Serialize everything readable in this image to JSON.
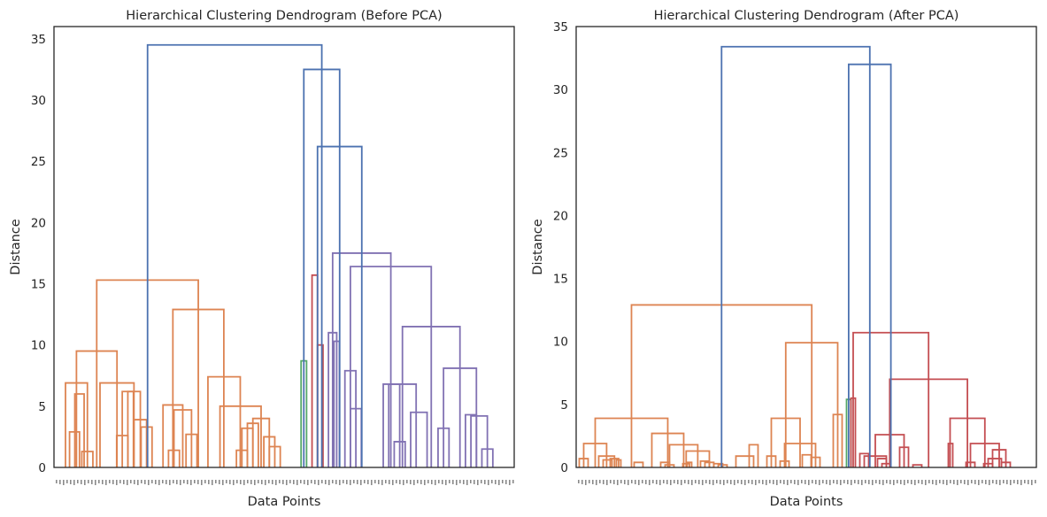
{
  "chart_data": [
    {
      "type": "dendrogram",
      "title": "Hierarchical Clustering Dendrogram (Before PCA)",
      "xlabel": "Data Points",
      "ylabel": "Distance",
      "ylim": [
        0,
        36
      ],
      "yticks": [
        0,
        5,
        10,
        15,
        20,
        25,
        30,
        35
      ],
      "grid": false,
      "legend": "none",
      "link_color": "#4c72b0",
      "links": [
        {
          "x": [
            14.2,
            23.3
          ],
          "h": 2.9,
          "c": "#dd8452"
        },
        {
          "x": [
            19,
            27.5
          ],
          "h": 6.0,
          "c": "#dd8452"
        },
        {
          "x": [
            25.4,
            35.5
          ],
          "h": 1.3,
          "c": "#dd8452"
        },
        {
          "x": [
            10.5,
            30.5
          ],
          "h": 6.9,
          "c": "#dd8452"
        },
        {
          "x": [
            57.2,
            67.5
          ],
          "h": 2.6,
          "c": "#dd8452"
        },
        {
          "x": [
            62.3,
            72.5
          ],
          "h": 6.2,
          "c": "#dd8452"
        },
        {
          "x": [
            79.5,
            89.5
          ],
          "h": 3.3,
          "c": "#dd8452"
        },
        {
          "x": [
            73,
            84.5
          ],
          "h": 3.9,
          "c": "#dd8452"
        },
        {
          "x": [
            67.4,
            78.8
          ],
          "h": 6.2,
          "c": "#dd8452"
        },
        {
          "x": [
            42,
            73
          ],
          "h": 6.9,
          "c": "#dd8452"
        },
        {
          "x": [
            20.5,
            57.5
          ],
          "h": 9.5,
          "c": "#dd8452"
        },
        {
          "x": [
            104.5,
            114.5
          ],
          "h": 1.4,
          "c": "#dd8452"
        },
        {
          "x": [
            120.5,
            130.5
          ],
          "h": 2.7,
          "c": "#dd8452"
        },
        {
          "x": [
            109.5,
            125.5
          ],
          "h": 4.7,
          "c": "#dd8452"
        },
        {
          "x": [
            99.5,
            117.5
          ],
          "h": 5.1,
          "c": "#dd8452"
        },
        {
          "x": [
            166.5,
            176.5
          ],
          "h": 1.4,
          "c": "#dd8452"
        },
        {
          "x": [
            171.5,
            181.5
          ],
          "h": 3.2,
          "c": "#dd8452"
        },
        {
          "x": [
            176.5,
            186.5
          ],
          "h": 3.6,
          "c": "#dd8452"
        },
        {
          "x": [
            196.5,
            206.5
          ],
          "h": 1.7,
          "c": "#dd8452"
        },
        {
          "x": [
            191.5,
            201.5
          ],
          "h": 2.5,
          "c": "#dd8452"
        },
        {
          "x": [
            181.5,
            196.5
          ],
          "h": 4.0,
          "c": "#dd8452"
        },
        {
          "x": [
            151.5,
            189.0
          ],
          "h": 5.0,
          "c": "#dd8452"
        },
        {
          "x": [
            140.5,
            170.0
          ],
          "h": 7.4,
          "c": "#dd8452"
        },
        {
          "x": [
            108.5,
            155.0
          ],
          "h": 12.9,
          "c": "#dd8452"
        },
        {
          "x": [
            39.0,
            131.7
          ],
          "h": 15.3,
          "c": "#dd8452"
        },
        {
          "x": [
            225.5,
            230.5
          ],
          "h": 8.7,
          "c": "#55a868"
        },
        {
          "x": [
            235.5,
            240.5
          ],
          "h": 15.7,
          "c": "#c44e52"
        },
        {
          "x": [
            240.5,
            245.5
          ],
          "h": 10.0,
          "c": "#c44e52"
        },
        {
          "x": [
            255.5,
            260.5
          ],
          "h": 10.3,
          "c": "#8172b3"
        },
        {
          "x": [
            250.5,
            258.0
          ],
          "h": 11.0,
          "c": "#8172b3"
        },
        {
          "x": [
            270.5,
            280.5
          ],
          "h": 4.8,
          "c": "#8172b3"
        },
        {
          "x": [
            265.5,
            275.5
          ],
          "h": 7.9,
          "c": "#8172b3"
        },
        {
          "x": [
            310.5,
            320.5
          ],
          "h": 2.1,
          "c": "#8172b3"
        },
        {
          "x": [
            300.5,
            315.5
          ],
          "h": 6.8,
          "c": "#8172b3"
        },
        {
          "x": [
            325.5,
            340.5
          ],
          "h": 4.5,
          "c": "#8172b3"
        },
        {
          "x": [
            305.5,
            330.5
          ],
          "h": 6.8,
          "c": "#8172b3"
        },
        {
          "x": [
            350.5,
            360.5
          ],
          "h": 3.2,
          "c": "#8172b3"
        },
        {
          "x": [
            375.5,
            385.5
          ],
          "h": 4.3,
          "c": "#8172b3"
        },
        {
          "x": [
            390.5,
            400.5
          ],
          "h": 1.5,
          "c": "#8172b3"
        },
        {
          "x": [
            380.5,
            395.5
          ],
          "h": 4.2,
          "c": "#8172b3"
        },
        {
          "x": [
            355.5,
            385.5
          ],
          "h": 8.1,
          "c": "#8172b3"
        },
        {
          "x": [
            318.0,
            370.5
          ],
          "h": 11.5,
          "c": "#8172b3"
        },
        {
          "x": [
            270.5,
            344.3
          ],
          "h": 16.4,
          "c": "#8172b3"
        },
        {
          "x": [
            254.3,
            307.4
          ],
          "h": 17.5,
          "c": "#8172b3"
        },
        {
          "x": [
            240.5,
            280.9
          ],
          "h": 26.2,
          "c": "#4c72b0"
        },
        {
          "x": [
            228.0,
            260.7
          ],
          "h": 32.5,
          "c": "#4c72b0"
        },
        {
          "x": [
            85.4,
            244.4
          ],
          "h": 34.5,
          "c": "#4c72b0"
        }
      ]
    },
    {
      "type": "dendrogram",
      "title": "Hierarchical Clustering Dendrogram (After PCA)",
      "xlabel": "Data Points",
      "ylabel": "Distance",
      "ylim": [
        0,
        35
      ],
      "yticks": [
        0,
        5,
        10,
        15,
        20,
        25,
        30,
        35
      ],
      "grid": false,
      "legend": "none",
      "link_color": "#4c72b0",
      "links": [
        {
          "x": [
            3.5,
            13.5
          ],
          "h": 0.7,
          "c": "#dd8452"
        },
        {
          "x": [
            30.5,
            40.5
          ],
          "h": 0.6,
          "c": "#dd8452"
        },
        {
          "x": [
            45.5,
            50.5
          ],
          "h": 0.6,
          "c": "#dd8452"
        },
        {
          "x": [
            38.5,
            48.0
          ],
          "h": 0.7,
          "c": "#dd8452"
        },
        {
          "x": [
            25.5,
            43.3
          ],
          "h": 0.9,
          "c": "#dd8452"
        },
        {
          "x": [
            8.5,
            34.4
          ],
          "h": 1.9,
          "c": "#dd8452"
        },
        {
          "x": [
            65.5,
            75.5
          ],
          "h": 0.4,
          "c": "#dd8452"
        },
        {
          "x": [
            95.5,
            105.5
          ],
          "h": 0.4,
          "c": "#dd8452"
        },
        {
          "x": [
            100.5,
            110.5
          ],
          "h": 0.2,
          "c": "#dd8452"
        },
        {
          "x": [
            125.5,
            130.5
          ],
          "h": 0.4,
          "c": "#dd8452"
        },
        {
          "x": [
            120.5,
            128.0
          ],
          "h": 0.3,
          "c": "#dd8452"
        },
        {
          "x": [
            140.5,
            150.5
          ],
          "h": 0.5,
          "c": "#dd8452"
        },
        {
          "x": [
            145.5,
            155.5
          ],
          "h": 0.4,
          "c": "#dd8452"
        },
        {
          "x": [
            155.5,
            165.5
          ],
          "h": 0.3,
          "c": "#dd8452"
        },
        {
          "x": [
            160.5,
            170.5
          ],
          "h": 0.2,
          "c": "#dd8452"
        },
        {
          "x": [
            124.3,
            150.5
          ],
          "h": 1.3,
          "c": "#dd8452"
        },
        {
          "x": [
            105.5,
            137.4
          ],
          "h": 1.8,
          "c": "#dd8452"
        },
        {
          "x": [
            85.5,
            121.5
          ],
          "h": 2.7,
          "c": "#dd8452"
        },
        {
          "x": [
            21.5,
            103.5
          ],
          "h": 3.9,
          "c": "#dd8452"
        },
        {
          "x": [
            195.5,
            205.5
          ],
          "h": 1.8,
          "c": "#dd8452"
        },
        {
          "x": [
            180.5,
            200.5
          ],
          "h": 0.9,
          "c": "#dd8452"
        },
        {
          "x": [
            215.5,
            225.5
          ],
          "h": 0.9,
          "c": "#dd8452"
        },
        {
          "x": [
            230.5,
            240.5
          ],
          "h": 0.5,
          "c": "#dd8452"
        },
        {
          "x": [
            255.5,
            265.5
          ],
          "h": 1.0,
          "c": "#dd8452"
        },
        {
          "x": [
            265.5,
            275.5
          ],
          "h": 0.8,
          "c": "#dd8452"
        },
        {
          "x": [
            235.5,
            270.5
          ],
          "h": 1.9,
          "c": "#dd8452"
        },
        {
          "x": [
            220.5,
            253.0
          ],
          "h": 3.9,
          "c": "#dd8452"
        },
        {
          "x": [
            290.5,
            300.5
          ],
          "h": 4.2,
          "c": "#dd8452"
        },
        {
          "x": [
            236.8,
            295.5
          ],
          "h": 9.9,
          "c": "#dd8452"
        },
        {
          "x": [
            62.5,
            266.2
          ],
          "h": 12.9,
          "c": "#dd8452"
        },
        {
          "x": [
            305.5,
            310.5
          ],
          "h": 5.4,
          "c": "#55a868"
        },
        {
          "x": [
            320.5,
            330.5
          ],
          "h": 1.1,
          "c": "#c44e52"
        },
        {
          "x": [
            340.5,
            350.5
          ],
          "h": 0.7,
          "c": "#c44e52"
        },
        {
          "x": [
            345.5,
            355.5
          ],
          "h": 0.3,
          "c": "#c44e52"
        },
        {
          "x": [
            325.5,
            350.5
          ],
          "h": 0.9,
          "c": "#c44e52"
        },
        {
          "x": [
            365.5,
            375.5
          ],
          "h": 1.6,
          "c": "#c44e52"
        },
        {
          "x": [
            380.5,
            390.5
          ],
          "h": 0.2,
          "c": "#c44e52"
        },
        {
          "x": [
            338.0,
            370.5
          ],
          "h": 2.6,
          "c": "#c44e52"
        },
        {
          "x": [
            420.5,
            425.5
          ],
          "h": 1.9,
          "c": "#c44e52"
        },
        {
          "x": [
            440.5,
            450.5
          ],
          "h": 0.4,
          "c": "#c44e52"
        },
        {
          "x": [
            460.5,
            470.5
          ],
          "h": 0.3,
          "c": "#c44e52"
        },
        {
          "x": [
            465.5,
            480.5
          ],
          "h": 0.7,
          "c": "#c44e52"
        },
        {
          "x": [
            480.5,
            490.5
          ],
          "h": 0.4,
          "c": "#c44e52"
        },
        {
          "x": [
            470.5,
            485.5
          ],
          "h": 1.4,
          "c": "#c44e52"
        },
        {
          "x": [
            445.5,
            478.0
          ],
          "h": 1.9,
          "c": "#c44e52"
        },
        {
          "x": [
            422.5,
            461.8
          ],
          "h": 3.9,
          "c": "#c44e52"
        },
        {
          "x": [
            354.3,
            442.1
          ],
          "h": 7.0,
          "c": "#c44e52"
        },
        {
          "x": [
            310.5,
            315.5
          ],
          "h": 5.5,
          "c": "#c44e52"
        },
        {
          "x": [
            313.0,
            398.2
          ],
          "h": 10.7,
          "c": "#c44e52"
        },
        {
          "x": [
            307.9,
            355.6
          ],
          "h": 32.0,
          "c": "#4c72b0"
        },
        {
          "x": [
            164.3,
            331.8
          ],
          "h": 33.4,
          "c": "#4c72b0"
        }
      ]
    }
  ]
}
